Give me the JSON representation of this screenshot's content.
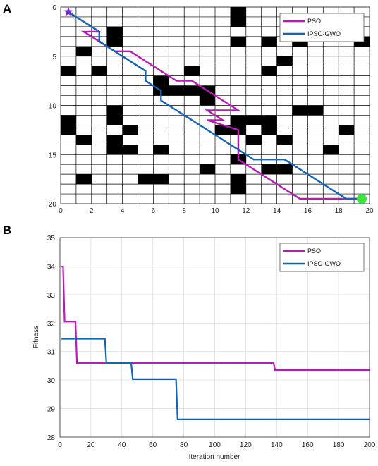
{
  "colors": {
    "pso": "#B81AB8",
    "ipso_gwo": "#1464B4",
    "obstacle": "#000000",
    "start": "#7B2CD6",
    "goal": "#3CE43C"
  },
  "chart_data": [
    {
      "panel": "A",
      "type": "scatter",
      "grid_size": 20,
      "xlim": [
        0,
        20
      ],
      "ylim": [
        0,
        20
      ],
      "x_ticks": [
        0,
        2,
        4,
        6,
        8,
        10,
        12,
        14,
        16,
        18,
        20
      ],
      "y_ticks": [
        0,
        5,
        10,
        15,
        20
      ],
      "start": [
        0.5,
        0.5
      ],
      "goal": [
        19.5,
        19.5
      ],
      "obstacles": [
        [
          11,
          0
        ],
        [
          11,
          1
        ],
        [
          3,
          2
        ],
        [
          3,
          3
        ],
        [
          11,
          3
        ],
        [
          13,
          3
        ],
        [
          15,
          3
        ],
        [
          19,
          3
        ],
        [
          1,
          4
        ],
        [
          14,
          5
        ],
        [
          0,
          6
        ],
        [
          2,
          6
        ],
        [
          8,
          6
        ],
        [
          13,
          6
        ],
        [
          6,
          7
        ],
        [
          6,
          8
        ],
        [
          7,
          8
        ],
        [
          8,
          8
        ],
        [
          9,
          8
        ],
        [
          9,
          9
        ],
        [
          15,
          10
        ],
        [
          16,
          10
        ],
        [
          3,
          10
        ],
        [
          3,
          11
        ],
        [
          11,
          11
        ],
        [
          12,
          11
        ],
        [
          13,
          11
        ],
        [
          0,
          11
        ],
        [
          0,
          12
        ],
        [
          4,
          12
        ],
        [
          10,
          12
        ],
        [
          11,
          12
        ],
        [
          13,
          12
        ],
        [
          18,
          12
        ],
        [
          1,
          13
        ],
        [
          3,
          13
        ],
        [
          12,
          13
        ],
        [
          14,
          13
        ],
        [
          3,
          14
        ],
        [
          4,
          14
        ],
        [
          6,
          14
        ],
        [
          17,
          14
        ],
        [
          11,
          15
        ],
        [
          13,
          16
        ],
        [
          14,
          16
        ],
        [
          9,
          16
        ],
        [
          11,
          17
        ],
        [
          5,
          17
        ],
        [
          6,
          17
        ],
        [
          1,
          17
        ],
        [
          11,
          18
        ]
      ],
      "series": [
        {
          "name": "PSO",
          "x": [
            0.5,
            2.5,
            1.5,
            2.5,
            3.5,
            4.5,
            5.5,
            7.5,
            8.5,
            11.5,
            9.5,
            10.5,
            9.5,
            9.5,
            11.5,
            11.5,
            14.5,
            15.5,
            19.5
          ],
          "y": [
            0.5,
            2.5,
            2.5,
            3.5,
            4.5,
            4.5,
            5.5,
            7.5,
            7.5,
            10.5,
            10.5,
            11.5,
            11.5,
            11.5,
            12.5,
            15.5,
            18.5,
            19.5,
            19.5
          ]
        },
        {
          "name": "IPSO-GWO",
          "x": [
            0.5,
            2.5,
            2.5,
            4.5,
            5.5,
            5.5,
            6.5,
            6.5,
            12.5,
            14.5,
            18.5,
            19.5
          ],
          "y": [
            0.5,
            2.5,
            3.5,
            5.5,
            6.5,
            7.5,
            8.5,
            9.5,
            15.5,
            15.5,
            19.5,
            19.5
          ]
        }
      ]
    },
    {
      "panel": "B",
      "type": "line",
      "xlabel": "Iteration number",
      "ylabel": "Fitness",
      "xlim": [
        0,
        200
      ],
      "ylim": [
        28,
        35
      ],
      "x_ticks": [
        0,
        20,
        40,
        60,
        80,
        100,
        120,
        140,
        160,
        180,
        200
      ],
      "y_ticks": [
        28,
        29,
        30,
        31,
        32,
        33,
        34,
        35
      ],
      "grid": true,
      "legend_position": "top-right",
      "series": [
        {
          "name": "PSO",
          "x": [
            1,
            2,
            3,
            10,
            11,
            138,
            139,
            200
          ],
          "y": [
            33.98,
            33.98,
            32.05,
            32.05,
            30.6,
            30.6,
            30.35,
            30.35
          ]
        },
        {
          "name": "IPSO-GWO",
          "x": [
            1,
            29,
            30,
            46,
            47,
            75,
            76,
            200
          ],
          "y": [
            31.45,
            31.45,
            30.6,
            30.6,
            30.03,
            30.03,
            28.62,
            28.62
          ]
        }
      ]
    }
  ]
}
